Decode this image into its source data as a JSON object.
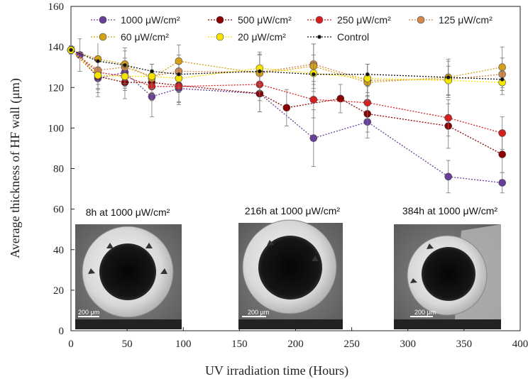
{
  "chart_data": {
    "type": "line",
    "xlabel": "UV irradiation time (Hours)",
    "ylabel": "Average thickness of HF wall (μm)",
    "xlim": [
      0,
      400
    ],
    "ylim": [
      0,
      160
    ],
    "xticks": [
      0,
      50,
      100,
      150,
      200,
      250,
      300,
      350,
      400
    ],
    "yticks": [
      0,
      20,
      40,
      60,
      80,
      100,
      120,
      140,
      160
    ],
    "grid": false,
    "legend_position": "top",
    "series": [
      {
        "name": "1000 μW/cm²",
        "color": "#6a3d9a",
        "points": [
          [
            0,
            138.5
          ],
          [
            8,
            136
          ],
          [
            24,
            124.5
          ],
          [
            48,
            127.5
          ],
          [
            72,
            115.5
          ],
          [
            96,
            119.5
          ],
          [
            168,
            117
          ],
          [
            216,
            95
          ],
          [
            264,
            103
          ],
          [
            336,
            76
          ],
          [
            384,
            73
          ]
        ],
        "errors": [
          2,
          8,
          9,
          7,
          10,
          8,
          9,
          14,
          8,
          8,
          5
        ]
      },
      {
        "name": "500 μW/cm²",
        "color": "#8b0000",
        "points": [
          [
            0,
            138.5
          ],
          [
            24,
            125.5
          ],
          [
            48,
            122.5
          ],
          [
            72,
            122.5
          ],
          [
            96,
            121
          ],
          [
            168,
            117
          ],
          [
            192,
            110
          ],
          [
            240,
            114.5
          ],
          [
            264,
            107
          ],
          [
            336,
            101
          ],
          [
            384,
            87
          ]
        ],
        "errors": [
          2,
          8,
          8,
          6,
          8,
          9,
          9,
          7,
          9,
          11,
          9
        ]
      },
      {
        "name": "250 μW/cm²",
        "color": "#d42020",
        "points": [
          [
            0,
            138.5
          ],
          [
            24,
            127.5
          ],
          [
            48,
            125.5
          ],
          [
            72,
            120.5
          ],
          [
            96,
            120.5
          ],
          [
            168,
            121.5
          ],
          [
            216,
            114
          ],
          [
            264,
            112.5
          ],
          [
            336,
            105
          ],
          [
            384,
            97.5
          ]
        ],
        "errors": [
          2,
          8,
          7,
          7,
          8,
          8,
          9,
          8,
          9,
          8
        ]
      },
      {
        "name": "125 μW/cm²",
        "color": "#d4874a",
        "points": [
          [
            0,
            138.5
          ],
          [
            24,
            128.5
          ],
          [
            48,
            130
          ],
          [
            72,
            125.5
          ],
          [
            96,
            128
          ],
          [
            168,
            127.5
          ],
          [
            216,
            131.5
          ],
          [
            264,
            123.5
          ],
          [
            336,
            124
          ],
          [
            384,
            126.5
          ]
        ],
        "errors": [
          2,
          7,
          8,
          6,
          8,
          9,
          10,
          8,
          9,
          8
        ]
      },
      {
        "name": "60 μW/cm²",
        "color": "#d4a017",
        "points": [
          [
            0,
            138.5
          ],
          [
            24,
            134
          ],
          [
            48,
            131.5
          ],
          [
            72,
            124.5
          ],
          [
            96,
            133
          ],
          [
            168,
            127
          ],
          [
            216,
            130.5
          ],
          [
            264,
            122.5
          ],
          [
            336,
            125
          ],
          [
            384,
            130
          ]
        ],
        "errors": [
          2,
          8,
          8,
          7,
          8,
          9,
          11,
          9,
          9,
          10
        ]
      },
      {
        "name": "20 μW/cm²",
        "color": "#f5e400",
        "points": [
          [
            0,
            138.5
          ],
          [
            24,
            126
          ],
          [
            48,
            125.5
          ],
          [
            72,
            125.5
          ],
          [
            96,
            124.5
          ],
          [
            168,
            129.5
          ],
          [
            216,
            127
          ],
          [
            264,
            124.5
          ],
          [
            336,
            123.5
          ],
          [
            384,
            122.5
          ]
        ],
        "errors": [
          2,
          7,
          6,
          6,
          7,
          8,
          9,
          7,
          7,
          6
        ]
      },
      {
        "name": "Control",
        "color": "#111111",
        "points": [
          [
            0,
            138.5
          ],
          [
            24,
            133
          ],
          [
            48,
            131
          ],
          [
            72,
            128
          ],
          [
            96,
            126.5
          ],
          [
            168,
            128
          ],
          [
            216,
            126.5
          ],
          [
            264,
            126.5
          ],
          [
            336,
            125
          ],
          [
            384,
            124
          ]
        ],
        "errors": [
          0,
          0,
          0,
          0,
          0,
          0,
          0,
          0,
          0,
          0
        ]
      }
    ],
    "insets": [
      {
        "title": "8h at 1000 μW/cm²",
        "scale": "200 μm"
      },
      {
        "title": "216h at 1000 μW/cm²",
        "scale": "200 μm"
      },
      {
        "title": "384h at 1000 μW/cm²",
        "scale": "200 μm"
      }
    ]
  }
}
